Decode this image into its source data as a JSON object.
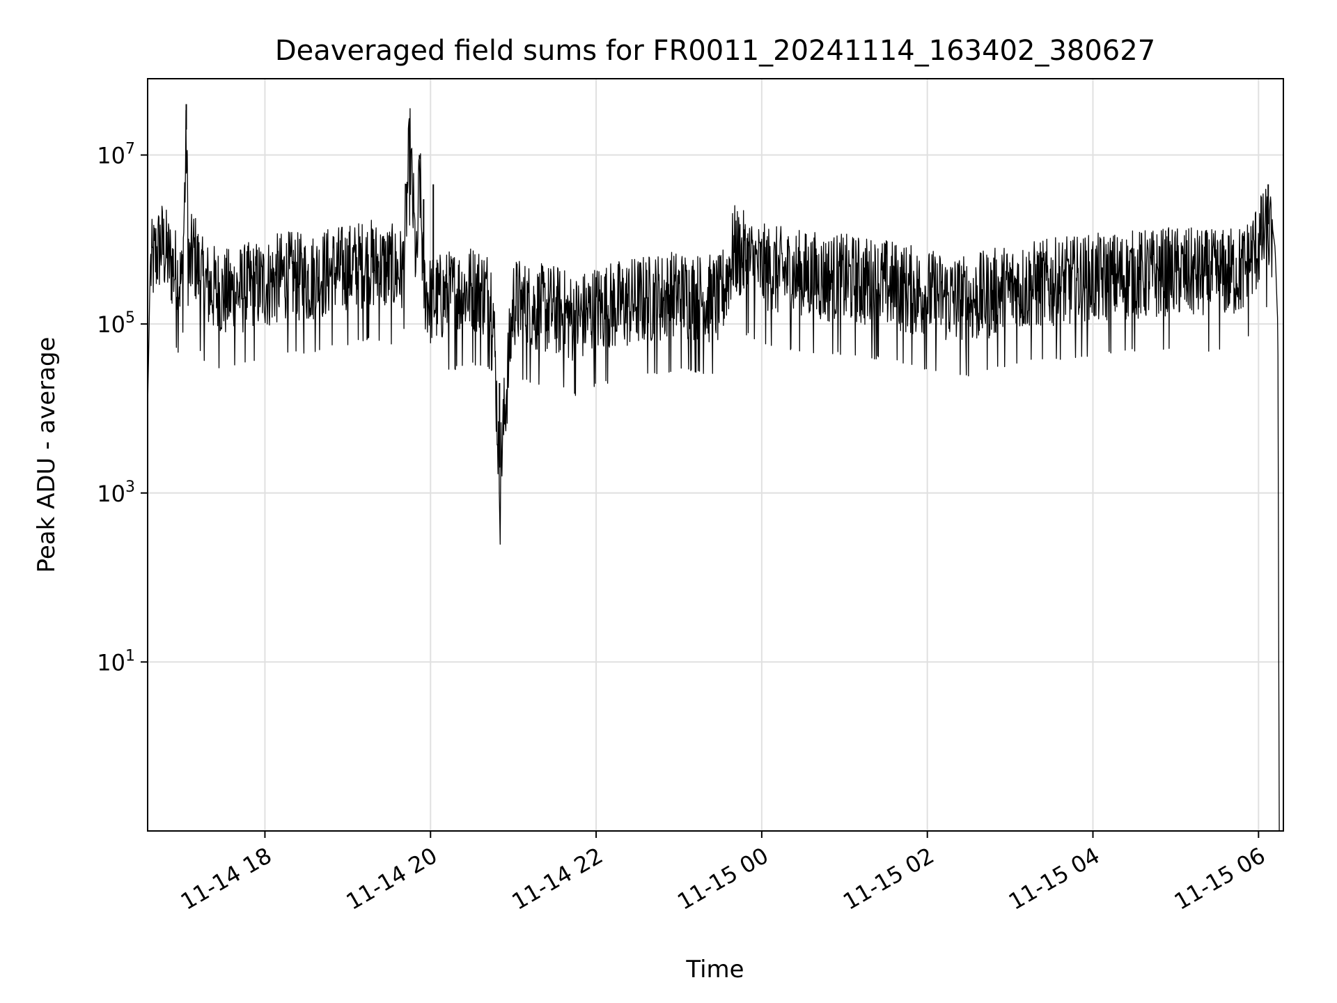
{
  "chart_data": {
    "type": "line",
    "title": "Deaveraged field sums for FR0011_20241114_163402_380627",
    "xlabel": "Time",
    "ylabel": "Peak ADU - average",
    "xscale": "time",
    "yscale": "log",
    "grid": true,
    "line_color": "#000000",
    "grid_color": "#e0e0e0",
    "xlim": [
      "2024-11-14 16:35",
      "2024-11-15 06:18"
    ],
    "ylim": [
      0.1,
      80000000
    ],
    "x_ticks": [
      {
        "value": "2024-11-14 18:00",
        "label": "11-14 18"
      },
      {
        "value": "2024-11-14 20:00",
        "label": "11-14 20"
      },
      {
        "value": "2024-11-14 22:00",
        "label": "11-14 22"
      },
      {
        "value": "2024-11-15 00:00",
        "label": "11-15 00"
      },
      {
        "value": "2024-11-15 02:00",
        "label": "11-15 02"
      },
      {
        "value": "2024-11-15 04:00",
        "label": "11-15 04"
      },
      {
        "value": "2024-11-15 06:00",
        "label": "11-15 06"
      }
    ],
    "y_ticks": [
      {
        "value": 10,
        "base": "10",
        "exp": "1"
      },
      {
        "value": 1000,
        "base": "10",
        "exp": "3"
      },
      {
        "value": 100000,
        "base": "10",
        "exp": "5"
      },
      {
        "value": 10000000,
        "base": "10",
        "exp": "7"
      }
    ],
    "series": [
      {
        "x": [
          "2024-11-14 16:35",
          "2024-11-14 16:37",
          "2024-11-14 16:40",
          "2024-11-14 16:45",
          "2024-11-14 16:52",
          "2024-11-14 17:00",
          "2024-11-14 17:03",
          "2024-11-14 17:05",
          "2024-11-14 17:08",
          "2024-11-14 17:15",
          "2024-11-14 17:30",
          "2024-11-14 17:45",
          "2024-11-14 18:00",
          "2024-11-14 18:15",
          "2024-11-14 18:30",
          "2024-11-14 18:45",
          "2024-11-14 19:00",
          "2024-11-14 19:15",
          "2024-11-14 19:30",
          "2024-11-14 19:40",
          "2024-11-14 19:45",
          "2024-11-14 19:50",
          "2024-11-14 19:52",
          "2024-11-14 19:55",
          "2024-11-14 20:00",
          "2024-11-14 20:15",
          "2024-11-14 20:30",
          "2024-11-14 20:45",
          "2024-11-14 20:50",
          "2024-11-14 21:00",
          "2024-11-14 21:15",
          "2024-11-14 21:30",
          "2024-11-14 21:45",
          "2024-11-14 22:00",
          "2024-11-14 22:30",
          "2024-11-14 23:00",
          "2024-11-14 23:30",
          "2024-11-14 23:35",
          "2024-11-14 23:40",
          "2024-11-15 00:00",
          "2024-11-15 00:30",
          "2024-11-15 01:00",
          "2024-11-15 01:30",
          "2024-11-15 02:00",
          "2024-11-15 02:30",
          "2024-11-15 03:00",
          "2024-11-15 03:30",
          "2024-11-15 04:00",
          "2024-11-15 04:30",
          "2024-11-15 05:00",
          "2024-11-15 05:30",
          "2024-11-15 05:50",
          "2024-11-15 06:00",
          "2024-11-15 06:05",
          "2024-11-15 06:10",
          "2024-11-15 06:12",
          "2024-11-15 06:14",
          "2024-11-15 06:15"
        ],
        "y": [
          10000,
          600000,
          800000,
          1200000,
          700000,
          400000,
          20000000,
          500000,
          1000000,
          400000,
          300000,
          350000,
          400000,
          500000,
          450000,
          550000,
          600000,
          700000,
          600000,
          550000,
          17000000,
          500000,
          9000000,
          400000,
          250000,
          300000,
          350000,
          300000,
          2000,
          250000,
          200000,
          200000,
          150000,
          200000,
          250000,
          300000,
          250000,
          500000,
          1000000,
          600000,
          500000,
          450000,
          400000,
          300000,
          250000,
          350000,
          400000,
          450000,
          500000,
          550000,
          500000,
          600000,
          1200000,
          1600000,
          1400000,
          800000,
          90000,
          0.1
        ],
        "spikes": [
          {
            "x": "2024-11-14 17:03",
            "y": 40000000
          },
          {
            "x": "2024-11-14 19:45",
            "y": 17000000
          },
          {
            "x": "2024-11-14 19:52",
            "y": 10000000
          },
          {
            "x": "2024-11-14 20:02",
            "y": 4500000
          },
          {
            "x": "2024-11-14 20:50",
            "y": 20000
          },
          {
            "x": "2024-11-14 19:55",
            "y": 3000000
          },
          {
            "x": "2024-11-15 06:07",
            "y": 4500000
          },
          {
            "x": "2024-11-15 06:02",
            "y": 3200000
          }
        ]
      }
    ]
  }
}
